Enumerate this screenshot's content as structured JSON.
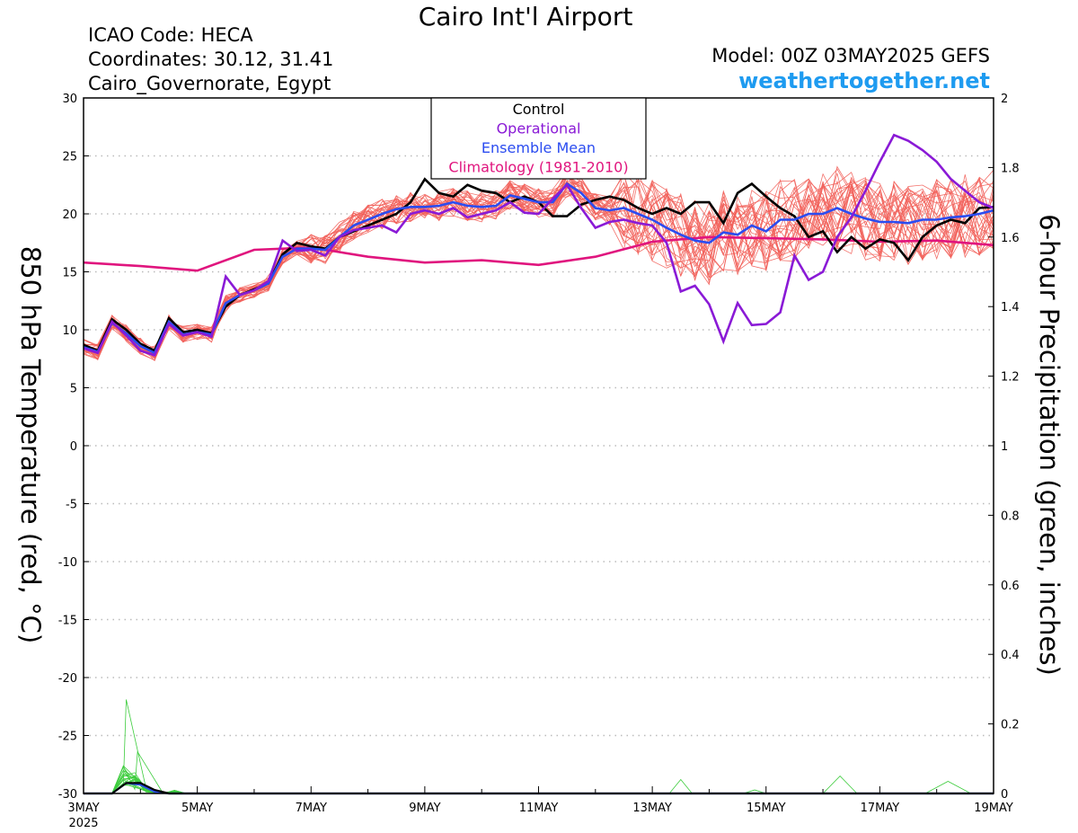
{
  "header": {
    "title": "Cairo Int'l Airport",
    "icao": "ICAO Code: HECA",
    "coords": "Coordinates: 30.12, 31.41",
    "region": "Cairo_Governorate, Egypt",
    "model": "Model: 00Z 03MAY2025 GEFS",
    "site": "weathertogether.net"
  },
  "chart_data": {
    "type": "line",
    "ylabel": "850 hPa Temperature (red, °C)",
    "y2label": "6-hour Precipitation (green, inches)",
    "xlim": [
      0,
      16
    ],
    "ylim": [
      -30,
      30
    ],
    "y2lim": [
      0,
      2
    ],
    "yticks": [
      "30",
      "25",
      "20",
      "15",
      "10",
      "5",
      "0",
      "-5",
      "-10",
      "-15",
      "-20",
      "-25",
      "-30"
    ],
    "y2ticks": [
      "2",
      "1.8",
      "1.6",
      "1.4",
      "1.2",
      "1",
      "0.8",
      "0.6",
      "0.4",
      "0.2",
      "0"
    ],
    "xticks": [
      {
        "day": 0,
        "label": "3MAY",
        "sub": "2025"
      },
      {
        "day": 2,
        "label": "5MAY",
        "sub": ""
      },
      {
        "day": 4,
        "label": "7MAY",
        "sub": ""
      },
      {
        "day": 6,
        "label": "9MAY",
        "sub": ""
      },
      {
        "day": 8,
        "label": "11MAY",
        "sub": ""
      },
      {
        "day": 10,
        "label": "13MAY",
        "sub": ""
      },
      {
        "day": 12,
        "label": "15MAY",
        "sub": ""
      },
      {
        "day": 14,
        "label": "17MAY",
        "sub": ""
      },
      {
        "day": 16,
        "label": "19MAY",
        "sub": ""
      }
    ],
    "legend": {
      "position": "top-center",
      "entries": [
        {
          "label": "Control",
          "color": "#000000"
        },
        {
          "label": "Operational",
          "color": "#8a1ad6"
        },
        {
          "label": "Ensemble Mean",
          "color": "#2b4cf0"
        },
        {
          "label": "Climatology (1981-2010)",
          "color": "#e0157e"
        }
      ]
    },
    "colors": {
      "members": "#f2605a",
      "precip": "#3ccc3c",
      "grid": "#bbbbbb"
    },
    "grid": true,
    "series": {
      "control": {
        "color": "#000000",
        "points": [
          [
            0,
            8.7
          ],
          [
            0.25,
            8.2
          ],
          [
            0.5,
            10.9
          ],
          [
            0.75,
            10
          ],
          [
            1,
            8.8
          ],
          [
            1.25,
            8.2
          ],
          [
            1.5,
            11
          ],
          [
            1.75,
            9.8
          ],
          [
            2,
            10
          ],
          [
            2.25,
            9.7
          ],
          [
            2.5,
            12
          ],
          [
            2.75,
            13
          ],
          [
            3,
            13.5
          ],
          [
            3.25,
            14
          ],
          [
            3.5,
            16.5
          ],
          [
            3.75,
            17.5
          ],
          [
            4,
            17.2
          ],
          [
            4.25,
            17
          ],
          [
            4.5,
            18
          ],
          [
            4.75,
            18.5
          ],
          [
            5,
            19
          ],
          [
            5.25,
            19.5
          ],
          [
            5.5,
            20
          ],
          [
            5.75,
            21
          ],
          [
            6,
            23
          ],
          [
            6.25,
            21.8
          ],
          [
            6.5,
            21.5
          ],
          [
            6.75,
            22.5
          ],
          [
            7,
            22
          ],
          [
            7.25,
            21.8
          ],
          [
            7.5,
            21
          ],
          [
            7.75,
            21.5
          ],
          [
            8,
            21
          ],
          [
            8.25,
            19.8
          ],
          [
            8.5,
            19.8
          ],
          [
            8.75,
            20.8
          ],
          [
            9,
            21.2
          ],
          [
            9.25,
            21.5
          ],
          [
            9.5,
            21.2
          ],
          [
            9.75,
            20.5
          ],
          [
            10,
            20
          ],
          [
            10.25,
            20.5
          ],
          [
            10.5,
            20
          ],
          [
            10.75,
            21
          ],
          [
            11,
            21
          ],
          [
            11.25,
            19.2
          ],
          [
            11.5,
            21.8
          ],
          [
            11.75,
            22.6
          ],
          [
            12,
            21.5
          ],
          [
            12.25,
            20.5
          ],
          [
            12.5,
            19.8
          ],
          [
            12.75,
            18
          ],
          [
            13,
            18.5
          ],
          [
            13.25,
            16.7
          ],
          [
            13.5,
            18
          ],
          [
            13.75,
            17
          ],
          [
            14,
            17.8
          ],
          [
            14.25,
            17.5
          ],
          [
            14.5,
            16
          ],
          [
            14.75,
            18
          ],
          [
            15,
            19
          ],
          [
            15.25,
            19.5
          ],
          [
            15.5,
            19.2
          ],
          [
            15.75,
            20.5
          ],
          [
            16,
            20.6
          ]
        ]
      },
      "operational": {
        "color": "#8a1ad6",
        "points": [
          [
            0,
            8.4
          ],
          [
            0.25,
            8
          ],
          [
            0.5,
            10.7
          ],
          [
            0.75,
            9.5
          ],
          [
            1,
            8.2
          ],
          [
            1.25,
            7.8
          ],
          [
            1.5,
            10.5
          ],
          [
            1.75,
            9.5
          ],
          [
            2,
            9.8
          ],
          [
            2.25,
            9.4
          ],
          [
            2.5,
            14.6
          ],
          [
            2.75,
            13
          ],
          [
            3,
            13.4
          ],
          [
            3.25,
            14.2
          ],
          [
            3.5,
            17.7
          ],
          [
            3.75,
            16.8
          ],
          [
            4,
            16.9
          ],
          [
            4.25,
            16.4
          ],
          [
            4.5,
            18
          ],
          [
            4.75,
            18.6
          ],
          [
            5,
            18.8
          ],
          [
            5.25,
            19
          ],
          [
            5.5,
            18.4
          ],
          [
            5.75,
            20
          ],
          [
            6,
            20.3
          ],
          [
            6.25,
            20
          ],
          [
            6.5,
            20.5
          ],
          [
            6.75,
            19.7
          ],
          [
            7,
            20
          ],
          [
            7.25,
            20.3
          ],
          [
            7.5,
            21
          ],
          [
            7.75,
            20.1
          ],
          [
            8,
            20
          ],
          [
            8.25,
            21.3
          ],
          [
            8.5,
            22.5
          ],
          [
            8.75,
            20.5
          ],
          [
            9,
            18.8
          ],
          [
            9.25,
            19.3
          ],
          [
            9.5,
            19.5
          ],
          [
            9.75,
            19.2
          ],
          [
            10,
            19
          ],
          [
            10.25,
            17.5
          ],
          [
            10.5,
            13.3
          ],
          [
            10.75,
            13.8
          ],
          [
            11,
            12.2
          ],
          [
            11.25,
            9
          ],
          [
            11.5,
            12.3
          ],
          [
            11.75,
            10.4
          ],
          [
            12,
            10.5
          ],
          [
            12.25,
            11.5
          ],
          [
            12.5,
            16.4
          ],
          [
            12.75,
            14.3
          ],
          [
            13,
            15
          ],
          [
            13.25,
            18
          ],
          [
            13.5,
            19.7
          ],
          [
            13.75,
            22
          ],
          [
            14,
            24.5
          ],
          [
            14.25,
            26.8
          ],
          [
            14.5,
            26.3
          ],
          [
            14.75,
            25.5
          ],
          [
            15,
            24.5
          ],
          [
            15.25,
            23
          ],
          [
            15.5,
            22
          ],
          [
            15.75,
            21
          ],
          [
            16,
            20.5
          ]
        ]
      },
      "mean": {
        "color": "#2b4cf0",
        "points": [
          [
            0,
            8.5
          ],
          [
            0.25,
            8.1
          ],
          [
            0.5,
            10.6
          ],
          [
            0.75,
            9.7
          ],
          [
            1,
            8.6
          ],
          [
            1.25,
            8
          ],
          [
            1.5,
            10.7
          ],
          [
            1.75,
            9.6
          ],
          [
            2,
            9.8
          ],
          [
            2.25,
            9.6
          ],
          [
            2.5,
            12.3
          ],
          [
            2.75,
            13
          ],
          [
            3,
            13.4
          ],
          [
            3.25,
            14
          ],
          [
            3.5,
            16.3
          ],
          [
            3.75,
            17
          ],
          [
            4,
            17
          ],
          [
            4.25,
            16.9
          ],
          [
            4.5,
            18
          ],
          [
            4.75,
            19
          ],
          [
            5,
            19.5
          ],
          [
            5.25,
            20
          ],
          [
            5.5,
            20.4
          ],
          [
            5.75,
            20.6
          ],
          [
            6,
            20.6
          ],
          [
            6.25,
            20.7
          ],
          [
            6.5,
            21
          ],
          [
            6.75,
            20.7
          ],
          [
            7,
            20.6
          ],
          [
            7.25,
            20.7
          ],
          [
            7.5,
            21.6
          ],
          [
            7.75,
            21.3
          ],
          [
            8,
            21
          ],
          [
            8.25,
            21
          ],
          [
            8.5,
            22.6
          ],
          [
            8.75,
            21.8
          ],
          [
            9,
            20.5
          ],
          [
            9.25,
            20.3
          ],
          [
            9.5,
            20.5
          ],
          [
            9.75,
            20
          ],
          [
            10,
            19.5
          ],
          [
            10.25,
            18.8
          ],
          [
            10.5,
            18.2
          ],
          [
            10.75,
            17.7
          ],
          [
            11,
            17.5
          ],
          [
            11.25,
            18.4
          ],
          [
            11.5,
            18.2
          ],
          [
            11.75,
            19
          ],
          [
            12,
            18.5
          ],
          [
            12.25,
            19.5
          ],
          [
            12.5,
            19.5
          ],
          [
            12.75,
            20
          ],
          [
            13,
            20
          ],
          [
            13.25,
            20.5
          ],
          [
            13.5,
            20
          ],
          [
            13.75,
            19.6
          ],
          [
            14,
            19.3
          ],
          [
            14.25,
            19.3
          ],
          [
            14.5,
            19.2
          ],
          [
            14.75,
            19.5
          ],
          [
            15,
            19.5
          ],
          [
            15.25,
            19.7
          ],
          [
            15.5,
            19.8
          ],
          [
            15.75,
            20
          ],
          [
            16,
            20.3
          ]
        ]
      },
      "climatology": {
        "color": "#e0157e",
        "points": [
          [
            0,
            15.8
          ],
          [
            1,
            15.5
          ],
          [
            2,
            15.1
          ],
          [
            3,
            16.9
          ],
          [
            4,
            17.1
          ],
          [
            5,
            16.3
          ],
          [
            6,
            15.8
          ],
          [
            7,
            16
          ],
          [
            8,
            15.6
          ],
          [
            9,
            16.3
          ],
          [
            10,
            17.6
          ],
          [
            11,
            18
          ],
          [
            12,
            17.9
          ],
          [
            13,
            17.8
          ],
          [
            14,
            17.6
          ],
          [
            15,
            17.7
          ],
          [
            16,
            17.3
          ]
        ]
      },
      "control_precip": {
        "color": "#000000",
        "points": [
          [
            0,
            0
          ],
          [
            0.5,
            0
          ],
          [
            0.75,
            0.03
          ],
          [
            1,
            0.03
          ],
          [
            1.25,
            0.01
          ],
          [
            1.5,
            0
          ],
          [
            16,
            0
          ]
        ]
      },
      "mean_precip": {
        "color": "#2b4cf0",
        "points": [
          [
            0,
            0
          ],
          [
            0.5,
            0
          ],
          [
            0.75,
            0.03
          ],
          [
            1,
            0.025
          ],
          [
            1.25,
            0.005
          ],
          [
            1.5,
            0
          ],
          [
            16,
            0
          ]
        ]
      }
    }
  }
}
